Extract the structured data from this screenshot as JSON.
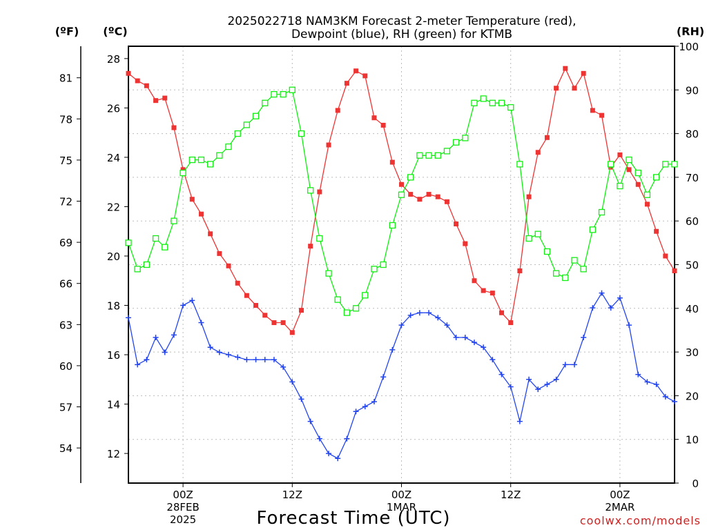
{
  "chart_data": {
    "type": "line",
    "title": "2025022718 NAM3KM Forecast 2-meter Temperature (red),",
    "subtitle": "Dewpoint (blue), RH (green) for KTMB",
    "xlabel": "Forecast Time (UTC)",
    "credit": "coolwx.com/models",
    "unit_labels": {
      "f": "(ºF)",
      "c": "(ºC)",
      "rh": "(RH)"
    },
    "x_start": "2025-02-27 18Z",
    "x_end": "2025-03-02 06Z",
    "x_ticks": [
      {
        "x": "2025-02-28 00Z",
        "lines": [
          "00Z",
          "28FEB",
          "2025"
        ]
      },
      {
        "x": "2025-02-28 12Z",
        "lines": [
          "12Z"
        ]
      },
      {
        "x": "2025-03-01 00Z",
        "lines": [
          "00Z",
          "1MAR"
        ]
      },
      {
        "x": "2025-03-01 12Z",
        "lines": [
          "12Z"
        ]
      },
      {
        "x": "2025-03-02 00Z",
        "lines": [
          "00Z",
          "2MAR"
        ]
      }
    ],
    "y_left_c": {
      "min": 10.8,
      "max": 28.5,
      "ticks": [
        12,
        14,
        16,
        18,
        20,
        22,
        24,
        26,
        28
      ]
    },
    "y_left_f": {
      "ticks": [
        54,
        57,
        60,
        63,
        66,
        69,
        72,
        75,
        78,
        81
      ]
    },
    "y_right_rh": {
      "min": 0,
      "max": 100,
      "ticks": [
        0,
        10,
        20,
        30,
        40,
        50,
        60,
        70,
        80,
        90,
        100
      ]
    },
    "grid": true,
    "series": [
      {
        "name": "Temperature",
        "axis": "c",
        "color": "#ee3333",
        "marker": "filled-square",
        "x_hours": [
          0,
          1,
          2,
          3,
          4,
          5,
          6,
          7,
          8,
          9,
          10,
          11,
          12,
          13,
          14,
          15,
          16,
          17,
          18,
          19,
          20,
          21,
          22,
          23,
          24,
          25,
          26,
          27,
          28,
          29,
          30,
          31,
          32,
          33,
          34,
          35,
          36,
          37,
          38,
          39,
          40,
          41,
          42,
          43,
          44,
          45,
          46,
          47,
          48,
          49,
          50,
          51,
          52,
          53,
          54,
          55,
          56,
          57,
          58,
          59,
          60
        ],
        "values": [
          27.4,
          27.1,
          26.9,
          26.3,
          26.4,
          25.2,
          23.5,
          22.3,
          21.7,
          20.9,
          20.1,
          19.6,
          18.9,
          18.4,
          18.0,
          17.6,
          17.3,
          17.3,
          16.9,
          17.8,
          20.4,
          22.6,
          24.5,
          25.9,
          27.0,
          27.5,
          27.3,
          25.6,
          25.3,
          23.8,
          22.9,
          22.5,
          22.3,
          22.5,
          22.4,
          22.2,
          21.3,
          20.5,
          19.0,
          18.6,
          18.5,
          17.7,
          17.3,
          19.4,
          22.4,
          24.2,
          24.8,
          26.8,
          27.6,
          26.8,
          27.4,
          25.9,
          25.7,
          23.6,
          24.1,
          23.5,
          22.9,
          22.1,
          21.0,
          20.0,
          19.4
        ]
      },
      {
        "name": "Dewpoint",
        "axis": "c",
        "color": "#2244ee",
        "marker": "plus",
        "x_hours": [
          0,
          1,
          2,
          3,
          4,
          5,
          6,
          7,
          8,
          9,
          10,
          11,
          12,
          13,
          14,
          15,
          16,
          17,
          18,
          19,
          20,
          21,
          22,
          23,
          24,
          25,
          26,
          27,
          28,
          29,
          30,
          31,
          32,
          33,
          34,
          35,
          36,
          37,
          38,
          39,
          40,
          41,
          42,
          43,
          44,
          45,
          46,
          47,
          48,
          49,
          50,
          51,
          52,
          53,
          54,
          55,
          56,
          57,
          58,
          59,
          60
        ],
        "values": [
          17.5,
          15.6,
          15.8,
          16.7,
          16.1,
          16.8,
          18.0,
          18.2,
          17.3,
          16.3,
          16.1,
          16.0,
          15.9,
          15.8,
          15.8,
          15.8,
          15.8,
          15.5,
          14.9,
          14.2,
          13.3,
          12.6,
          12.0,
          11.8,
          12.6,
          13.7,
          13.9,
          14.1,
          15.1,
          16.2,
          17.2,
          17.6,
          17.7,
          17.7,
          17.5,
          17.2,
          16.7,
          16.7,
          16.5,
          16.3,
          15.8,
          15.2,
          14.7,
          13.3,
          15.0,
          14.6,
          14.8,
          15.0,
          15.6,
          15.6,
          16.7,
          17.9,
          18.5,
          17.9,
          18.3,
          17.2,
          15.2,
          14.9,
          14.8,
          14.3,
          14.1
        ]
      },
      {
        "name": "RH",
        "axis": "rh",
        "color": "#11ee11",
        "marker": "open-square",
        "x_hours": [
          0,
          1,
          2,
          3,
          4,
          5,
          6,
          7,
          8,
          9,
          10,
          11,
          12,
          13,
          14,
          15,
          16,
          17,
          18,
          19,
          20,
          21,
          22,
          23,
          24,
          25,
          26,
          27,
          28,
          29,
          30,
          31,
          32,
          33,
          34,
          35,
          36,
          37,
          38,
          39,
          40,
          41,
          42,
          43,
          44,
          45,
          46,
          47,
          48,
          49,
          50,
          51,
          52,
          53,
          54,
          55,
          56,
          57,
          58,
          59,
          60
        ],
        "values": [
          55,
          49,
          50,
          56,
          54,
          60,
          71,
          74,
          74,
          73,
          75,
          77,
          80,
          82,
          84,
          87,
          89,
          89,
          90,
          80,
          67,
          56,
          48,
          42,
          39,
          40,
          43,
          49,
          50,
          59,
          66,
          70,
          75,
          75,
          75,
          76,
          78,
          79,
          87,
          88,
          87,
          87,
          86,
          73,
          56,
          57,
          53,
          48,
          47,
          51,
          49,
          58,
          62,
          73,
          68,
          74,
          71,
          66,
          70,
          73,
          73
        ]
      }
    ]
  }
}
